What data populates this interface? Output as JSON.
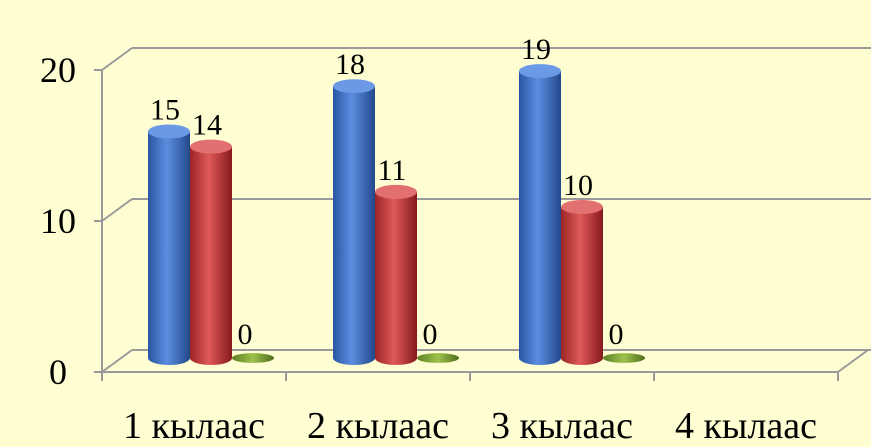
{
  "chart_data": {
    "type": "bar",
    "categories": [
      "1 кылаас",
      "2 кылаас",
      "3 кылаас",
      "4 кылаас"
    ],
    "series": [
      {
        "values": [
          15,
          18,
          19,
          null
        ],
        "color": "#3f6fc4"
      },
      {
        "values": [
          14,
          11,
          10,
          null
        ],
        "color": "#c0393b"
      },
      {
        "values": [
          0,
          0,
          0,
          null
        ],
        "color": "#7ea23c"
      }
    ],
    "ylim": [
      0,
      20
    ],
    "yticks": [
      "0",
      "10",
      "20"
    ],
    "grid": true,
    "legend": false,
    "style": "3d-cylinder"
  }
}
